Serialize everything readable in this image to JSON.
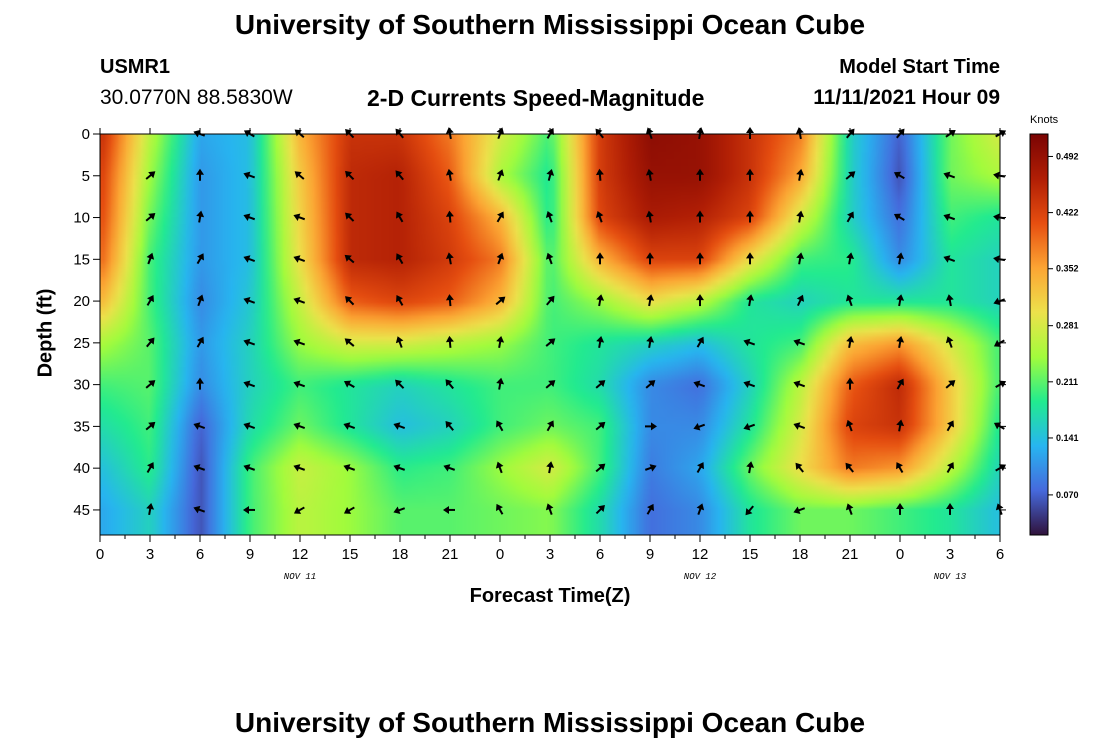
{
  "header": {
    "title": "University of Southern Mississippi Ocean Cube",
    "station_id": "USMR1",
    "station_coords": "30.0770N  88.5830W",
    "plot_title": "2-D Currents Speed-Magnitude",
    "model_start_label": "Model Start Time",
    "model_start_value": "11/11/2021 Hour 09"
  },
  "footer": {
    "title": "University of Southern Mississippi Ocean Cube"
  },
  "colors": {
    "scale": [
      "#30123b",
      "#4669dc",
      "#27b5f0",
      "#22eb8f",
      "#a2fc3c",
      "#ede14b",
      "#fca433",
      "#e64e10",
      "#b01e05",
      "#7a0403"
    ],
    "arrow": "#000000"
  },
  "chart_data": {
    "type": "heatmap",
    "title": "2-D Currents Speed-Magnitude",
    "xlabel": "Forecast Time(Z)",
    "ylabel": "Depth (ft)",
    "units": "Knots",
    "x_tick_labels": [
      "0",
      "3",
      "6",
      "9",
      "12",
      "15",
      "18",
      "21",
      "0",
      "3",
      "6",
      "9",
      "12",
      "15",
      "18",
      "21",
      "0",
      "3",
      "6"
    ],
    "date_labels": [
      {
        "label": "NOV 11",
        "at_tick": 4
      },
      {
        "label": "NOV 12",
        "at_tick": 12
      },
      {
        "label": "NOV 13",
        "at_tick": 17
      }
    ],
    "y_ticks": [
      0,
      5,
      10,
      15,
      20,
      25,
      30,
      35,
      40,
      45
    ],
    "ylim": [
      0,
      48
    ],
    "colorbar_ticks": [
      0.07,
      0.141,
      0.211,
      0.281,
      0.352,
      0.422,
      0.492
    ],
    "colorbar_tick_labels": [
      "0.070",
      "0.141",
      "0.211",
      "0.281",
      "0.352",
      "0.422",
      "0.492"
    ],
    "clim": [
      0.02,
      0.52
    ],
    "depths": [
      0,
      5,
      10,
      15,
      20,
      25,
      30,
      35,
      40,
      45
    ],
    "speed_rows": [
      [
        0.45,
        0.26,
        0.12,
        0.14,
        0.34,
        0.44,
        0.44,
        0.38,
        0.28,
        0.2,
        0.43,
        0.5,
        0.49,
        0.44,
        0.38,
        0.16,
        0.07,
        0.22,
        0.28
      ],
      [
        0.43,
        0.24,
        0.11,
        0.14,
        0.32,
        0.45,
        0.46,
        0.4,
        0.25,
        0.18,
        0.43,
        0.49,
        0.49,
        0.44,
        0.35,
        0.16,
        0.06,
        0.22,
        0.25
      ],
      [
        0.42,
        0.22,
        0.11,
        0.14,
        0.31,
        0.45,
        0.46,
        0.42,
        0.34,
        0.18,
        0.42,
        0.47,
        0.46,
        0.42,
        0.28,
        0.16,
        0.08,
        0.2,
        0.18
      ],
      [
        0.4,
        0.2,
        0.11,
        0.14,
        0.3,
        0.45,
        0.46,
        0.43,
        0.38,
        0.2,
        0.34,
        0.42,
        0.42,
        0.3,
        0.2,
        0.19,
        0.1,
        0.18,
        0.16
      ],
      [
        0.34,
        0.2,
        0.1,
        0.15,
        0.27,
        0.4,
        0.42,
        0.4,
        0.34,
        0.2,
        0.24,
        0.3,
        0.26,
        0.18,
        0.16,
        0.18,
        0.18,
        0.18,
        0.16
      ],
      [
        0.25,
        0.21,
        0.11,
        0.16,
        0.24,
        0.28,
        0.28,
        0.26,
        0.24,
        0.2,
        0.18,
        0.16,
        0.14,
        0.18,
        0.2,
        0.33,
        0.36,
        0.28,
        0.2
      ],
      [
        0.2,
        0.21,
        0.1,
        0.16,
        0.2,
        0.18,
        0.16,
        0.18,
        0.2,
        0.2,
        0.17,
        0.1,
        0.08,
        0.16,
        0.26,
        0.4,
        0.45,
        0.32,
        0.2
      ],
      [
        0.17,
        0.2,
        0.07,
        0.17,
        0.22,
        0.18,
        0.14,
        0.16,
        0.2,
        0.22,
        0.2,
        0.1,
        0.1,
        0.18,
        0.28,
        0.42,
        0.44,
        0.32,
        0.18
      ],
      [
        0.14,
        0.19,
        0.06,
        0.2,
        0.27,
        0.24,
        0.19,
        0.2,
        0.24,
        0.28,
        0.2,
        0.09,
        0.12,
        0.22,
        0.3,
        0.38,
        0.36,
        0.26,
        0.16
      ],
      [
        0.12,
        0.16,
        0.06,
        0.2,
        0.26,
        0.24,
        0.21,
        0.21,
        0.22,
        0.23,
        0.17,
        0.08,
        0.1,
        0.18,
        0.22,
        0.22,
        0.2,
        0.18,
        0.14
      ]
    ],
    "direction_rows_deg": [
      [
        null,
        null,
        200,
        210,
        220,
        225,
        230,
        260,
        290,
        300,
        230,
        250,
        280,
        270,
        260,
        310,
        310,
        325,
        330
      ],
      [
        null,
        320,
        270,
        200,
        220,
        225,
        230,
        260,
        290,
        285,
        265,
        260,
        270,
        270,
        280,
        320,
        210,
        200,
        190
      ],
      [
        null,
        320,
        280,
        200,
        200,
        225,
        240,
        265,
        300,
        250,
        250,
        260,
        270,
        270,
        280,
        300,
        210,
        200,
        190
      ],
      [
        null,
        290,
        300,
        200,
        200,
        220,
        240,
        260,
        290,
        250,
        270,
        270,
        270,
        270,
        280,
        280,
        280,
        200,
        190
      ],
      [
        null,
        300,
        290,
        200,
        200,
        225,
        240,
        265,
        320,
        310,
        280,
        280,
        270,
        280,
        295,
        250,
        280,
        260,
        160
      ],
      [
        null,
        310,
        300,
        200,
        200,
        220,
        250,
        265,
        280,
        320,
        280,
        280,
        300,
        200,
        200,
        280,
        280,
        250,
        150
      ],
      [
        null,
        320,
        270,
        200,
        200,
        210,
        225,
        230,
        280,
        320,
        320,
        320,
        200,
        200,
        200,
        270,
        300,
        320,
        330
      ],
      [
        null,
        320,
        200,
        200,
        200,
        200,
        200,
        230,
        240,
        300,
        320,
        0,
        160,
        160,
        200,
        250,
        280,
        300,
        210
      ],
      [
        null,
        300,
        200,
        200,
        200,
        200,
        200,
        200,
        250,
        280,
        320,
        340,
        300,
        280,
        230,
        230,
        240,
        300,
        330
      ],
      [
        null,
        280,
        200,
        180,
        150,
        150,
        160,
        180,
        240,
        250,
        315,
        300,
        290,
        130,
        160,
        250,
        270,
        270,
        250
      ]
    ]
  }
}
